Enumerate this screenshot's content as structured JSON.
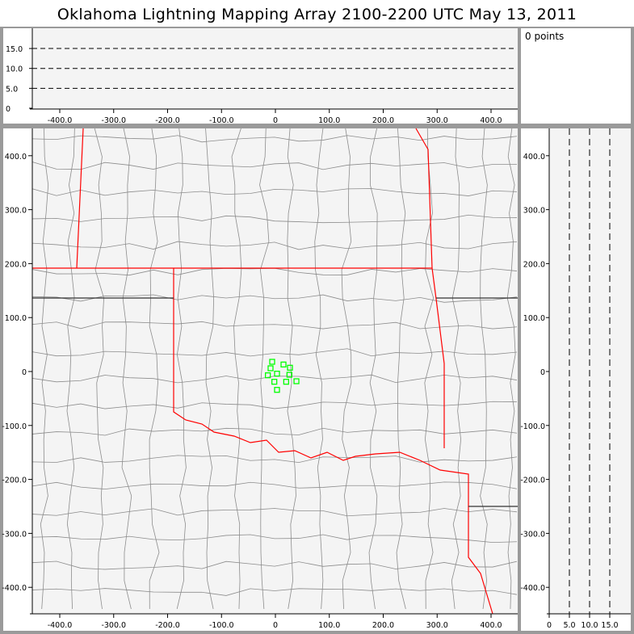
{
  "title": "Oklahoma Lightning Mapping Array   2100-2200 UTC  May 13, 2011",
  "point_count_label": "0 points",
  "colors": {
    "background": "#f4f4f4",
    "state_border": "#ff0000",
    "county_border": "#8c8c8c",
    "source_points": "#00ff00",
    "frame": "#9a9a9a"
  },
  "chart_data": [
    {
      "type": "scatter",
      "name_panel": "altitude-vs-east-west",
      "x_ticks": [
        "-400.0",
        "-300.0",
        "-200.0",
        "-100.0",
        "0",
        "100.0",
        "200.0",
        "300.0",
        "400.0"
      ],
      "y_ticks": [
        "0",
        "5.0",
        "10.0",
        "15.0"
      ],
      "xlim": [
        -450,
        450
      ],
      "ylim": [
        0,
        20
      ],
      "grid": "dashed horizontal at 5, 10, 15",
      "points": []
    },
    {
      "type": "scatter",
      "name_panel": "plan-view-map",
      "x_ticks": [
        "-400.0",
        "-300.0",
        "-200.0",
        "-100.0",
        "0",
        "100.0",
        "200.0",
        "300.0",
        "400.0"
      ],
      "y_ticks": [
        "-400.0",
        "-300.0",
        "-200.0",
        "-100.0",
        "0",
        "100.0",
        "200.0",
        "300.0",
        "400.0"
      ],
      "xlim": [
        -450,
        450
      ],
      "ylim": [
        -450,
        450
      ],
      "marker": "hollow square",
      "color": "#00ff00",
      "points": [
        [
          -6,
          18
        ],
        [
          15,
          13
        ],
        [
          27,
          7
        ],
        [
          -9,
          6
        ],
        [
          3,
          -4
        ],
        [
          -14,
          -7
        ],
        [
          26,
          -6
        ],
        [
          20,
          -19
        ],
        [
          39,
          -18
        ],
        [
          -2,
          -19
        ],
        [
          3,
          -34
        ]
      ]
    },
    {
      "type": "scatter",
      "name_panel": "north-south-vs-altitude",
      "x_ticks": [
        "0",
        "5.0",
        "10.0",
        "15.0"
      ],
      "y_ticks": [
        "-400.0",
        "-300.0",
        "-200.0",
        "-100.0",
        "0",
        "100.0",
        "200.0",
        "300.0",
        "400.0"
      ],
      "xlim": [
        0,
        20
      ],
      "ylim": [
        -450,
        450
      ],
      "grid": "dashed vertical at 5, 10, 15",
      "points": []
    }
  ]
}
